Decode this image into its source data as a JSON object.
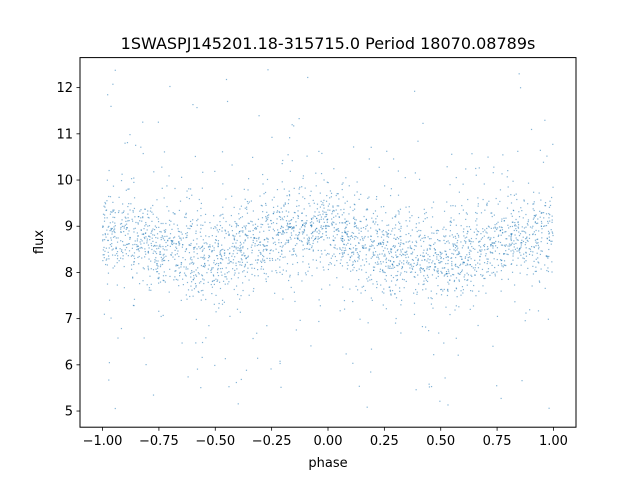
{
  "chart_data": {
    "type": "scatter",
    "title": "1SWASPJ145201.18-315715.0 Period 18070.08789s",
    "xlabel": "phase",
    "ylabel": "flux",
    "xlim": [
      -1.1,
      1.1
    ],
    "ylim": [
      4.65,
      12.65
    ],
    "x_ticks": [
      -1.0,
      -0.75,
      -0.5,
      -0.25,
      0.0,
      0.25,
      0.5,
      0.75,
      1.0
    ],
    "x_tick_labels": [
      "−1.00",
      "−0.75",
      "−0.50",
      "−0.25",
      "0.00",
      "0.25",
      "0.50",
      "0.75",
      "1.00"
    ],
    "y_ticks": [
      5,
      6,
      7,
      8,
      9,
      10,
      11,
      12
    ],
    "y_tick_labels": [
      "5",
      "6",
      "7",
      "8",
      "9",
      "10",
      "11",
      "12"
    ],
    "grid": false,
    "legend": "none",
    "point_color": "#1f77b4",
    "series": [
      {
        "x_range": [
          -1.0,
          1.0
        ],
        "y_range": [
          5.0,
          12.4
        ],
        "trend": {
          "phase": [
            -1.0,
            -0.75,
            -0.5,
            -0.25,
            0.0,
            0.25,
            0.5,
            0.75,
            1.0
          ],
          "flux": [
            8.9,
            8.6,
            8.3,
            8.8,
            9.0,
            8.5,
            8.2,
            8.7,
            8.9
          ]
        }
      }
    ]
  }
}
